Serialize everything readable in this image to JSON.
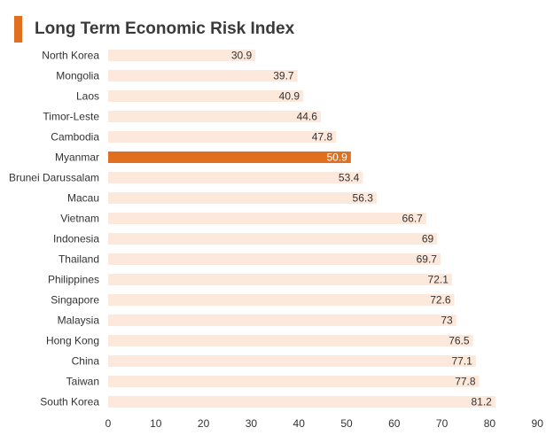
{
  "title": "Long Term Economic Risk Index",
  "colors": {
    "accent": "#e07020",
    "bar": "#fde8dc",
    "highlight": "#e07020",
    "text": "#333333"
  },
  "chart_data": {
    "type": "bar",
    "orientation": "horizontal",
    "title": "Long Term Economic Risk Index",
    "xlabel": "",
    "ylabel": "",
    "xlim": [
      0,
      90
    ],
    "xticks": [
      0,
      10,
      20,
      30,
      40,
      50,
      60,
      70,
      80,
      90
    ],
    "grid": false,
    "highlight": "Myanmar",
    "categories": [
      "North Korea",
      "Mongolia",
      "Laos",
      "Timor-Leste",
      "Cambodia",
      "Myanmar",
      "Brunei Darussalam",
      "Macau",
      "Vietnam",
      "Indonesia",
      "Thailand",
      "Philippines",
      "Singapore",
      "Malaysia",
      "Hong Kong",
      "China",
      "Taiwan",
      "South Korea"
    ],
    "values": [
      30.9,
      39.7,
      40.9,
      44.6,
      47.8,
      50.9,
      53.4,
      56.3,
      66.7,
      69,
      69.7,
      72.1,
      72.6,
      73,
      76.5,
      77.1,
      77.8,
      81.2
    ],
    "value_labels": [
      "30.9",
      "39.7",
      "40.9",
      "44.6",
      "47.8",
      "50.9",
      "53.4",
      "56.3",
      "66.7",
      "69",
      "69.7",
      "72.1",
      "72.6",
      "73",
      "76.5",
      "77.1",
      "77.8",
      "81.2"
    ]
  }
}
